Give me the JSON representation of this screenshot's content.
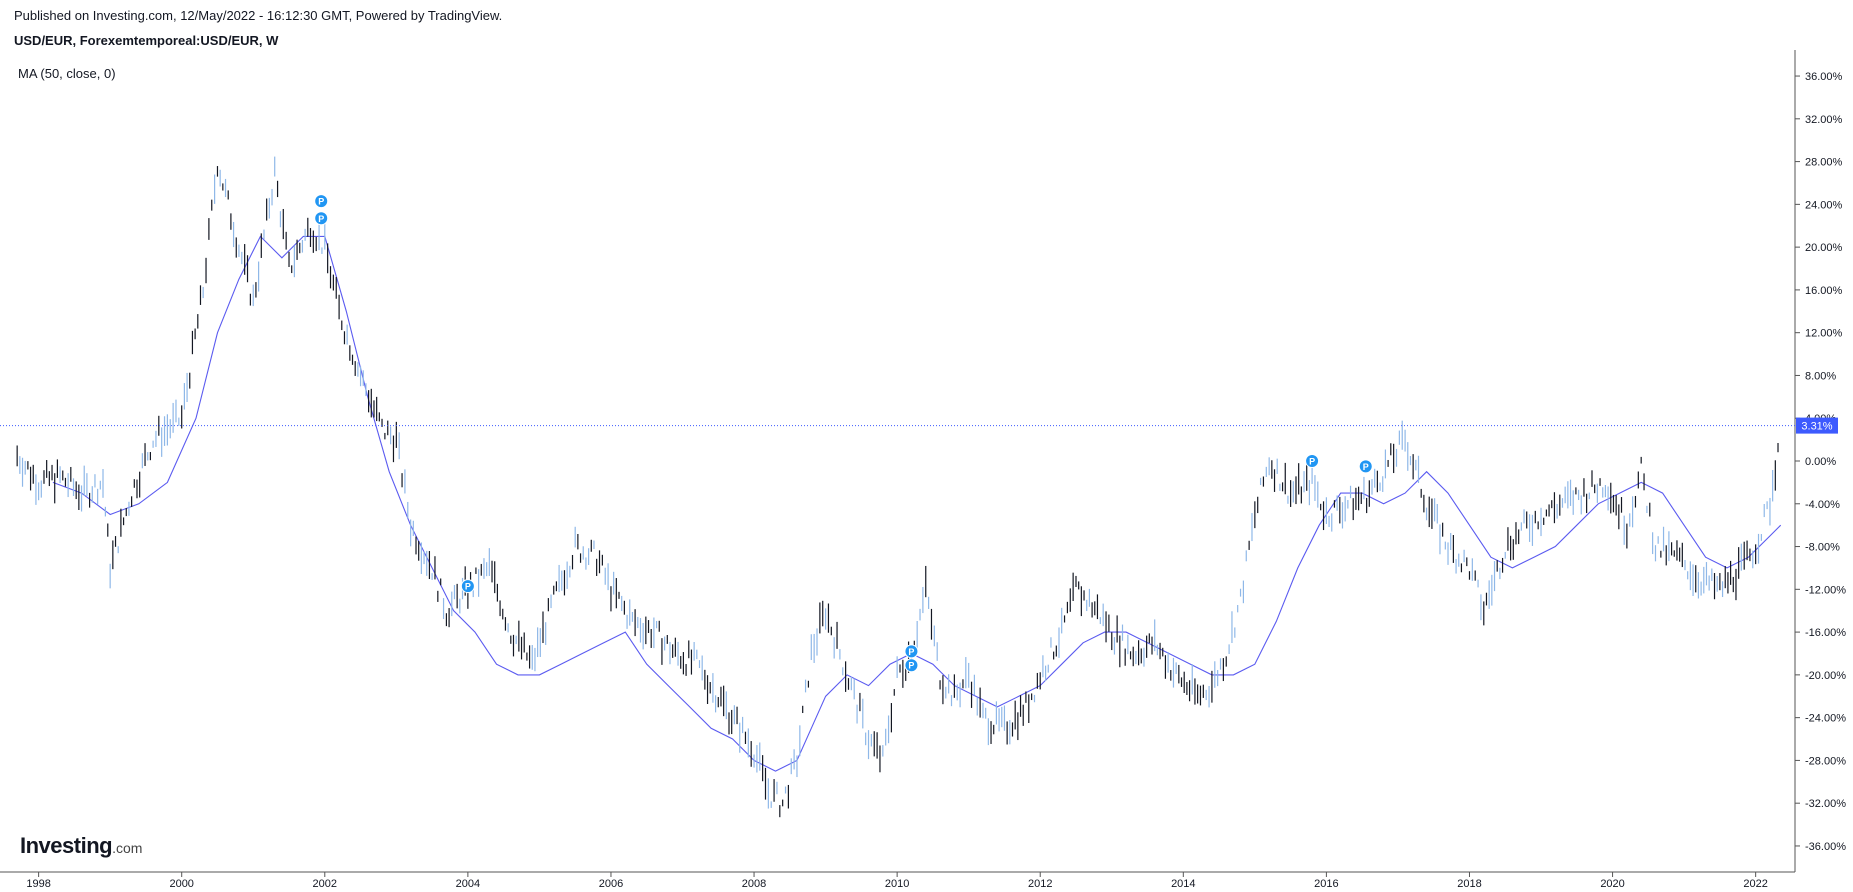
{
  "header": {
    "published": "Published on Investing.com, 12/May/2022 - 16:12:30 GMT, Powered by TradingView.",
    "symbol": "USD/EUR, Forexemtemporeal:USD/EUR, W",
    "indicator": "MA (50, close, 0)"
  },
  "logo": {
    "main": "Investing",
    "suffix": ".com"
  },
  "chart_data": {
    "type": "line",
    "series": [
      {
        "name": "USD/EUR",
        "x": [
          1997.7,
          1998.0,
          1998.3,
          1998.6,
          1998.9,
          1999.0,
          1999.3,
          1999.6,
          2000.0,
          2000.3,
          2000.5,
          2000.8,
          2001.0,
          2001.3,
          2001.5,
          2001.8,
          2002.0,
          2002.2,
          2002.5,
          2002.8,
          2003.0,
          2003.2,
          2003.5,
          2003.7,
          2004.0,
          2004.3,
          2004.6,
          2004.9,
          2005.2,
          2005.5,
          2005.8,
          2006.0,
          2006.3,
          2006.6,
          2006.9,
          2007.2,
          2007.5,
          2007.8,
          2008.0,
          2008.2,
          2008.4,
          2008.6,
          2008.8,
          2009.0,
          2009.2,
          2009.4,
          2009.6,
          2009.8,
          2010.0,
          2010.2,
          2010.4,
          2010.6,
          2010.8,
          2011.0,
          2011.2,
          2011.5,
          2011.8,
          2012.0,
          2012.3,
          2012.5,
          2012.8,
          2013.0,
          2013.3,
          2013.6,
          2013.9,
          2014.2,
          2014.4,
          2014.6,
          2014.8,
          2015.0,
          2015.2,
          2015.5,
          2015.8,
          2016.0,
          2016.3,
          2016.6,
          2016.9,
          2017.1,
          2017.4,
          2017.7,
          2018.0,
          2018.2,
          2018.5,
          2018.8,
          2019.0,
          2019.3,
          2019.6,
          2019.9,
          2020.2,
          2020.4,
          2020.6,
          2020.9,
          2021.2,
          2021.5,
          2021.8,
          2022.0,
          2022.2,
          2022.35
        ],
        "y": [
          0.5,
          -2,
          -1.5,
          -3,
          -2,
          -10,
          -3,
          2,
          4,
          16,
          28,
          20,
          15,
          27,
          18,
          22,
          20,
          14,
          8,
          3,
          2,
          -6,
          -10,
          -14,
          -12,
          -10,
          -16,
          -19,
          -13,
          -8,
          -9,
          -12,
          -15,
          -16,
          -18,
          -19,
          -22,
          -25,
          -27,
          -31,
          -32,
          -28,
          -18,
          -14,
          -18,
          -22,
          -26,
          -28,
          -20,
          -18,
          -12,
          -20,
          -22,
          -20,
          -24,
          -25,
          -23,
          -20,
          -16,
          -12,
          -14,
          -16,
          -18,
          -17,
          -20,
          -22,
          -21,
          -18,
          -13,
          -5,
          0,
          -3,
          -2,
          -5,
          -4,
          -3,
          0,
          2,
          -4,
          -8,
          -10,
          -14,
          -8,
          -6,
          -5,
          -4,
          -3,
          -2,
          -6,
          -1,
          -8,
          -9,
          -11,
          -12,
          -10,
          -8,
          -4,
          3.31
        ]
      },
      {
        "name": "MA (50, close, 0)",
        "x": [
          1998.2,
          1998.6,
          1999.0,
          1999.4,
          1999.8,
          2000.2,
          2000.5,
          2000.8,
          2001.1,
          2001.4,
          2001.7,
          2002.0,
          2002.3,
          2002.6,
          2002.9,
          2003.2,
          2003.5,
          2003.8,
          2004.1,
          2004.4,
          2004.7,
          2005.0,
          2005.3,
          2005.6,
          2005.9,
          2006.2,
          2006.5,
          2006.8,
          2007.1,
          2007.4,
          2007.7,
          2008.0,
          2008.3,
          2008.6,
          2008.8,
          2009.0,
          2009.3,
          2009.6,
          2009.9,
          2010.2,
          2010.5,
          2010.8,
          2011.1,
          2011.4,
          2011.7,
          2012.0,
          2012.3,
          2012.6,
          2012.9,
          2013.2,
          2013.5,
          2013.8,
          2014.1,
          2014.4,
          2014.7,
          2015.0,
          2015.3,
          2015.6,
          2015.9,
          2016.2,
          2016.5,
          2016.8,
          2017.1,
          2017.4,
          2017.7,
          2018.0,
          2018.3,
          2018.6,
          2018.9,
          2019.2,
          2019.5,
          2019.8,
          2020.1,
          2020.4,
          2020.7,
          2021.0,
          2021.3,
          2021.6,
          2021.9,
          2022.2,
          2022.35
        ],
        "y": [
          -2,
          -3,
          -5,
          -4,
          -2,
          4,
          12,
          17,
          21,
          19,
          21,
          21,
          14,
          6,
          -1,
          -6,
          -10,
          -14,
          -16,
          -19,
          -20,
          -20,
          -19,
          -18,
          -17,
          -16,
          -19,
          -21,
          -23,
          -25,
          -26,
          -28,
          -29,
          -28,
          -25,
          -22,
          -20,
          -21,
          -19,
          -18,
          -19,
          -21,
          -22,
          -23,
          -22,
          -21,
          -19,
          -17,
          -16,
          -16,
          -17,
          -18,
          -19,
          -20,
          -20,
          -19,
          -15,
          -10,
          -6,
          -3,
          -3,
          -4,
          -3,
          -1,
          -3,
          -6,
          -9,
          -10,
          -9,
          -8,
          -6,
          -4,
          -3,
          -2,
          -3,
          -6,
          -9,
          -10,
          -9,
          -7,
          -6
        ]
      }
    ],
    "markers": [
      {
        "label": "P",
        "x": 2001.95,
        "y": 24.3
      },
      {
        "label": "P",
        "x": 2001.95,
        "y": 22.7
      },
      {
        "label": "P",
        "x": 2004.0,
        "y": -11.7
      },
      {
        "label": "P",
        "x": 2010.2,
        "y": -17.8
      },
      {
        "label": "P",
        "x": 2010.2,
        "y": -19.1
      },
      {
        "label": "P",
        "x": 2015.8,
        "y": 0.0
      },
      {
        "label": "P",
        "x": 2016.55,
        "y": -0.5
      }
    ],
    "current_value": 3.31,
    "current_label": "3.31%",
    "y_ticks": [
      "36.00%",
      "32.00%",
      "28.00%",
      "24.00%",
      "20.00%",
      "16.00%",
      "12.00%",
      "8.00%",
      "4.00%",
      "0.00%",
      "-4.00%",
      "-8.00%",
      "-12.00%",
      "-16.00%",
      "-20.00%",
      "-24.00%",
      "-28.00%",
      "-32.00%",
      "-36.00%"
    ],
    "y_tick_values": [
      36,
      32,
      28,
      24,
      20,
      16,
      12,
      8,
      4,
      0,
      -4,
      -8,
      -12,
      -16,
      -20,
      -24,
      -28,
      -32,
      -36
    ],
    "x_ticks": [
      "1998",
      "2000",
      "2002",
      "2004",
      "2006",
      "2008",
      "2010",
      "2012",
      "2014",
      "2016",
      "2018",
      "2020",
      "2022"
    ],
    "x_tick_values": [
      1998,
      2000,
      2002,
      2004,
      2006,
      2008,
      2010,
      2012,
      2014,
      2016,
      2018,
      2020,
      2022
    ],
    "ylim": [
      -37.5,
      37.5
    ],
    "xlim": [
      1997.6,
      2022.55
    ],
    "colors": {
      "price": "#131722",
      "ma": "#5b5bf0",
      "marker": "#2196f3",
      "current_line": "#3d5afe",
      "current_bg": "#3d5afe"
    }
  }
}
